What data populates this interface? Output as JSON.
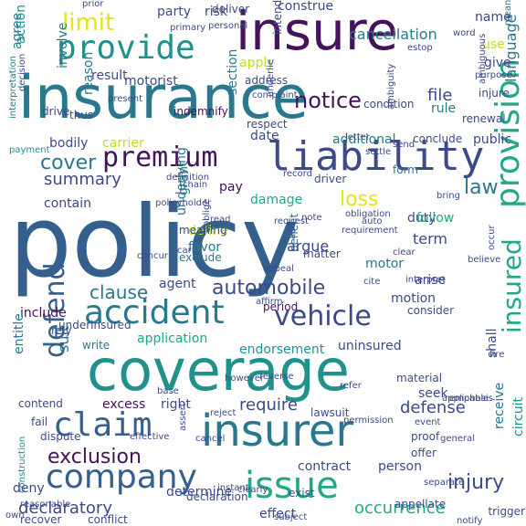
{
  "palette": {
    "dark_purple": "#44135a",
    "indigo": "#3c4a8a",
    "blue": "#355f8d",
    "teal_blue": "#2a788e",
    "teal": "#21918c",
    "green_teal": "#22a884",
    "green": "#44bf70",
    "light_green": "#7ad151",
    "yellow_green": "#bddf26",
    "yellow": "#e5e419"
  },
  "words": [
    {
      "text": "policy"
    },
    {
      "text": "insurance"
    },
    {
      "text": "coverage"
    },
    {
      "text": "insure"
    },
    {
      "text": "insurer"
    },
    {
      "text": "liability"
    },
    {
      "text": "provide"
    },
    {
      "text": "accident"
    },
    {
      "text": "claim"
    },
    {
      "text": "company"
    },
    {
      "text": "issue"
    },
    {
      "text": "vehicle"
    },
    {
      "text": "premium"
    },
    {
      "text": "provision"
    },
    {
      "text": "insured"
    },
    {
      "text": "defend"
    },
    {
      "text": "limit"
    },
    {
      "text": "notice"
    },
    {
      "text": "cover"
    },
    {
      "text": "exclusion"
    },
    {
      "text": "automobile"
    },
    {
      "text": "summary"
    },
    {
      "text": "clause"
    },
    {
      "text": "loss"
    },
    {
      "text": "law"
    },
    {
      "text": "injury"
    },
    {
      "text": "declaratory"
    },
    {
      "text": "require"
    },
    {
      "text": "defense"
    },
    {
      "text": "occurrence"
    },
    {
      "text": "cancellation"
    },
    {
      "text": "construe"
    },
    {
      "text": "party"
    },
    {
      "text": "risk"
    },
    {
      "text": "agree"
    },
    {
      "text": "file"
    },
    {
      "text": "apply"
    },
    {
      "text": "language"
    },
    {
      "text": "motorist"
    },
    {
      "text": "result"
    },
    {
      "text": "involve"
    },
    {
      "text": "action"
    },
    {
      "text": "reason"
    },
    {
      "text": "section"
    },
    {
      "text": "bodily"
    },
    {
      "text": "carrier"
    },
    {
      "text": "benefit"
    },
    {
      "text": "argue"
    },
    {
      "text": "duty"
    },
    {
      "text": "damage"
    },
    {
      "text": "term"
    },
    {
      "text": "follow"
    },
    {
      "text": "contain"
    },
    {
      "text": "pay"
    },
    {
      "text": "date"
    },
    {
      "text": "grant"
    },
    {
      "text": "favor"
    },
    {
      "text": "define"
    },
    {
      "text": "underlying"
    },
    {
      "text": "agent"
    },
    {
      "text": "motor"
    },
    {
      "text": "arise"
    },
    {
      "text": "motion"
    },
    {
      "text": "include"
    },
    {
      "text": "application"
    },
    {
      "text": "endorsement"
    },
    {
      "text": "uninsured"
    },
    {
      "text": "period"
    },
    {
      "text": "consider"
    },
    {
      "text": "right"
    },
    {
      "text": "seek"
    },
    {
      "text": "suit"
    },
    {
      "text": "entitle"
    },
    {
      "text": "contract"
    },
    {
      "text": "person"
    },
    {
      "text": "receive"
    },
    {
      "text": "determine"
    },
    {
      "text": "effect"
    },
    {
      "text": "deny"
    },
    {
      "text": "excess"
    },
    {
      "text": "write"
    },
    {
      "text": "rely"
    },
    {
      "text": "circuit"
    },
    {
      "text": "name"
    },
    {
      "text": "use"
    },
    {
      "text": "give"
    },
    {
      "text": "rule"
    },
    {
      "text": "public"
    },
    {
      "text": "additional"
    },
    {
      "text": "conclude"
    },
    {
      "text": "form"
    },
    {
      "text": "meaning"
    },
    {
      "text": "exclude"
    },
    {
      "text": "matter"
    },
    {
      "text": "driver"
    },
    {
      "text": "lawsuit"
    },
    {
      "text": "offer"
    },
    {
      "text": "proof"
    },
    {
      "text": "shall"
    },
    {
      "text": "underinsured"
    },
    {
      "text": "declaration"
    },
    {
      "text": "exist"
    },
    {
      "text": "appellate"
    },
    {
      "text": "trigger"
    },
    {
      "text": "recover"
    },
    {
      "text": "conflict"
    },
    {
      "text": "contend"
    },
    {
      "text": "fail"
    },
    {
      "text": "dispute"
    },
    {
      "text": "material"
    },
    {
      "text": "indemnify"
    },
    {
      "text": "respect"
    },
    {
      "text": "condition"
    },
    {
      "text": "address"
    },
    {
      "text": "complaint"
    },
    {
      "text": "primary"
    },
    {
      "text": "personal"
    },
    {
      "text": "deliver"
    },
    {
      "text": "intend"
    },
    {
      "text": "estop"
    },
    {
      "text": "word"
    },
    {
      "text": "mean"
    },
    {
      "text": "purpose"
    },
    {
      "text": "injure"
    },
    {
      "text": "renewal"
    },
    {
      "text": "send"
    },
    {
      "text": "ambiguity"
    },
    {
      "text": "thus"
    },
    {
      "text": "drive"
    },
    {
      "text": "decision"
    },
    {
      "text": "interpretation"
    },
    {
      "text": "payment"
    },
    {
      "text": "present"
    },
    {
      "text": "underlie"
    },
    {
      "text": "letter"
    },
    {
      "text": "settle"
    },
    {
      "text": "definition"
    },
    {
      "text": "chain"
    },
    {
      "text": "policyholder"
    },
    {
      "text": "obligation"
    },
    {
      "text": "requirement"
    },
    {
      "text": "bring"
    },
    {
      "text": "auto"
    },
    {
      "text": "clear"
    },
    {
      "text": "car"
    },
    {
      "text": "construction"
    },
    {
      "text": "oblige"
    },
    {
      "text": "cite"
    },
    {
      "text": "interpret"
    },
    {
      "text": "appeal"
    },
    {
      "text": "affirm"
    },
    {
      "text": "believe"
    },
    {
      "text": "occur"
    },
    {
      "text": "ambiguous"
    },
    {
      "text": "applicable"
    },
    {
      "text": "emphasis"
    },
    {
      "text": "reverse"
    },
    {
      "text": "refer"
    },
    {
      "text": "base"
    },
    {
      "text": "however"
    },
    {
      "text": "reject"
    },
    {
      "text": "permission"
    },
    {
      "text": "event"
    },
    {
      "text": "general"
    },
    {
      "text": "effective"
    },
    {
      "text": "cancel"
    },
    {
      "text": "assert"
    },
    {
      "text": "instant"
    },
    {
      "text": "clearly"
    },
    {
      "text": "subject"
    },
    {
      "text": "reasonable"
    },
    {
      "text": "own"
    },
    {
      "text": "notify"
    },
    {
      "text": "separate"
    },
    {
      "text": "prior"
    },
    {
      "text": "record"
    },
    {
      "text": "note"
    },
    {
      "text": "request"
    },
    {
      "text": "read"
    },
    {
      "text": "add"
    },
    {
      "text": "fire"
    },
    {
      "text": "concur"
    },
    {
      "text": "argument"
    },
    {
      "text": "afford"
    },
    {
      "text": "specifically"
    }
  ]
}
